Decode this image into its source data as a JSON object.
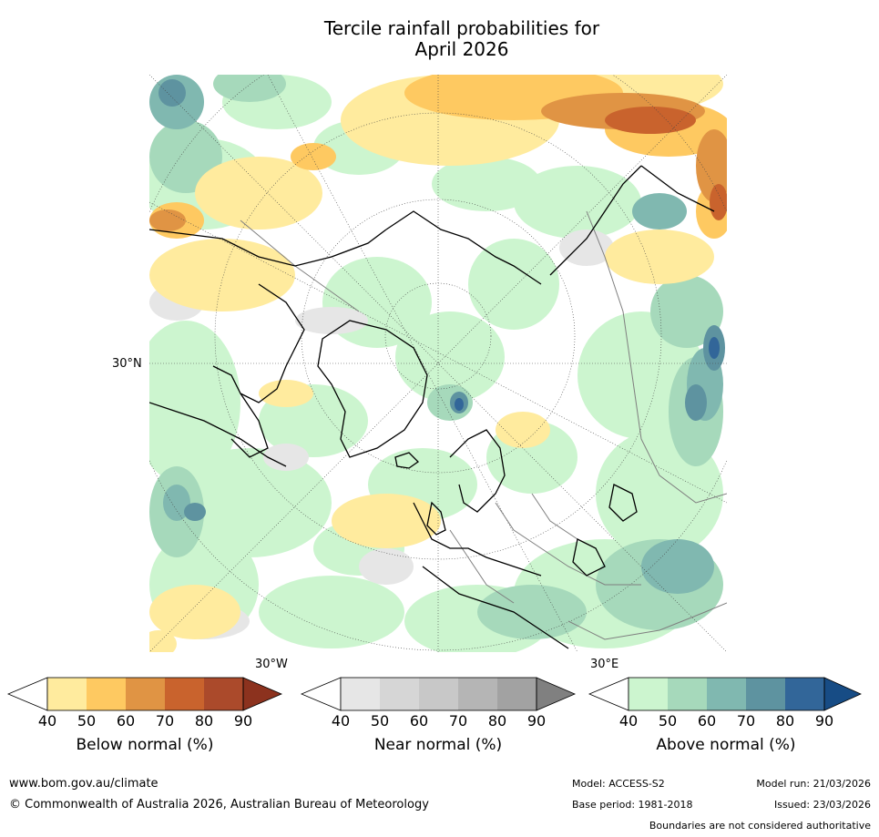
{
  "title_line1": "Tercile rainfall probabilities for",
  "title_line2": "April 2026",
  "map": {
    "projection": "north-polar-stereographic",
    "lat_label": "30°N",
    "lon_label_w": "30°W",
    "lon_label_e": "30°E"
  },
  "colorbars": [
    {
      "name": "below",
      "label": "Below normal (%)",
      "ticks": [
        "40",
        "50",
        "60",
        "70",
        "80",
        "90"
      ],
      "colors": [
        "#ffeb9e",
        "#fec961",
        "#e09444",
        "#c9632d",
        "#ab4a2b",
        "#8c321e"
      ]
    },
    {
      "name": "near",
      "label": "Near normal (%)",
      "ticks": [
        "40",
        "50",
        "60",
        "70",
        "80",
        "90"
      ],
      "colors": [
        "#e6e6e6",
        "#d6d6d6",
        "#c8c8c8",
        "#b5b5b5",
        "#a2a2a2",
        "#808080"
      ]
    },
    {
      "name": "above",
      "label": "Above normal (%)",
      "ticks": [
        "40",
        "50",
        "60",
        "70",
        "80",
        "90"
      ],
      "colors": [
        "#ccf5cf",
        "#a6d9bb",
        "#80b8b0",
        "#5e93a0",
        "#326699",
        "#174c85"
      ]
    }
  ],
  "footer": {
    "url": "www.bom.gov.au/climate",
    "copyright": "© Commonwealth of Australia 2026, Australian Bureau of Meteorology",
    "model": "Model: ACCESS-S2",
    "model_run": "Model run: 21/03/2026",
    "base_period": "Base period: 1981-2018",
    "issued": "Issued: 23/03/2026",
    "disclaimer": "Boundaries are not considered authoritative"
  },
  "colors": {
    "land_outline": "#000000",
    "border": "#7f7f7f",
    "graticule": "#444444",
    "map_background": "#ffffff"
  }
}
